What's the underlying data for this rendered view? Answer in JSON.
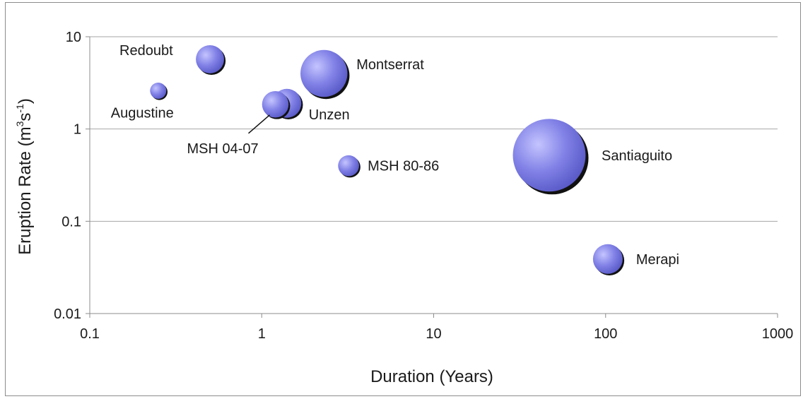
{
  "chart_data": {
    "type": "bubble",
    "xlabel": "Duration (Years)",
    "ylabel_main": "Eruption Rate (m",
    "ylabel_sup1": "3",
    "ylabel_mid": "s",
    "ylabel_sup2": "-1",
    "ylabel_end": ")",
    "x_scale": "log",
    "y_scale": "log",
    "xlim": [
      0.1,
      1000
    ],
    "ylim": [
      0.01,
      10
    ],
    "x_ticks": [
      "0.1",
      "1",
      "10",
      "100",
      "1000"
    ],
    "y_ticks": [
      "0.01",
      "0.1",
      "1",
      "10"
    ],
    "grid": "horizontal",
    "bubble_color": "#8080e6",
    "bubble_edge": "#111111",
    "points": [
      {
        "name": "Redoubt",
        "x": 0.5,
        "y": 5.7,
        "size": 0.9
      },
      {
        "name": "Augustine",
        "x": 0.25,
        "y": 2.6,
        "size": 0.3
      },
      {
        "name": "Montserrat",
        "x": 2.3,
        "y": 4.0,
        "size": 2.5
      },
      {
        "name": "Unzen",
        "x": 1.4,
        "y": 1.9,
        "size": 0.95
      },
      {
        "name": "MSH 04-07",
        "x": 1.2,
        "y": 1.85,
        "size": 0.8
      },
      {
        "name": "MSH 80-86",
        "x": 3.2,
        "y": 0.4,
        "size": 0.5
      },
      {
        "name": "Santiaguito",
        "x": 47,
        "y": 0.52,
        "size": 6.0
      },
      {
        "name": "Merapi",
        "x": 103,
        "y": 0.039,
        "size": 1.0
      }
    ]
  }
}
